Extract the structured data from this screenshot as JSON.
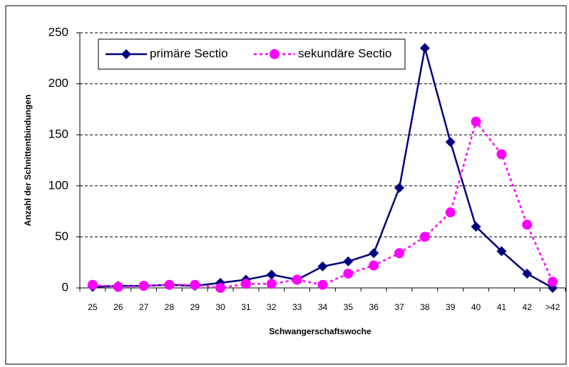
{
  "chart_data": {
    "type": "line",
    "xlabel": "Schwangerschaftswoche",
    "ylabel": "Anzahl der Schnittentbindungen",
    "categories": [
      "25",
      "26",
      "27",
      "28",
      "29",
      "30",
      "31",
      "32",
      "33",
      "34",
      "35",
      "36",
      "37",
      "38",
      "39",
      "40",
      "41",
      "42",
      ">42"
    ],
    "series": [
      {
        "name": "primäre Sectio",
        "color": "#000080",
        "line_style": "solid",
        "marker": "diamond",
        "values": [
          1,
          2,
          2,
          3,
          2,
          5,
          8,
          13,
          8,
          21,
          26,
          34,
          98,
          235,
          143,
          60,
          36,
          14,
          0
        ]
      },
      {
        "name": "sekundäre Sectio",
        "color": "#ff00ff",
        "line_style": "dotted",
        "marker": "circle",
        "values": [
          3,
          1,
          2,
          3,
          3,
          0,
          4,
          4,
          8,
          3,
          14,
          22,
          34,
          50,
          74,
          163,
          131,
          62,
          6
        ]
      }
    ],
    "ylim": [
      0,
      250
    ],
    "yticks": [
      0,
      50,
      100,
      150,
      200,
      250
    ],
    "grid": true,
    "legend": "top-left"
  }
}
